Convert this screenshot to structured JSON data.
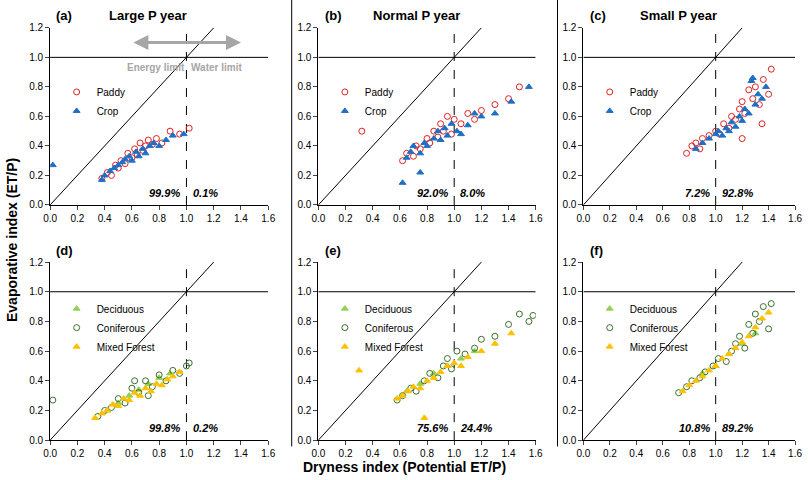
{
  "chart_data": {
    "type": "scatter",
    "xlabel": "Dryness index (Potential ET/P)",
    "ylabel": "Evaporative index (ET/P)",
    "xlim": [
      0,
      1.6
    ],
    "ylim": [
      0,
      1.2
    ],
    "xticks": [
      {
        "value": 0,
        "label": "0.0"
      },
      {
        "value": 0.2,
        "label": "0.2"
      },
      {
        "value": 0.4,
        "label": "0.4"
      },
      {
        "value": 0.6,
        "label": "0.6"
      },
      {
        "value": 0.8,
        "label": "0.8"
      },
      {
        "value": 1,
        "label": "1.0"
      },
      {
        "value": 1.2,
        "label": "1.2"
      },
      {
        "value": 1.4,
        "label": "1.4"
      },
      {
        "value": 1.6,
        "label": "1.6"
      }
    ],
    "yticks": [
      {
        "value": 0,
        "label": "0.0"
      },
      {
        "value": 0.2,
        "label": "0.2"
      },
      {
        "value": 0.4,
        "label": "0.4"
      },
      {
        "value": 0.6,
        "label": "0.6"
      },
      {
        "value": 0.8,
        "label": "0.8"
      },
      {
        "value": 1,
        "label": "1.0"
      },
      {
        "value": 1.2,
        "label": "1.2"
      }
    ],
    "grid": false,
    "legend": "upper left",
    "reference_lines": [
      {
        "x": [
          0,
          1.2
        ],
        "y": [
          0,
          1.2
        ],
        "line_style": "solid"
      },
      {
        "x": [
          0,
          1.6
        ],
        "y": [
          1,
          1
        ],
        "line_style": "solid"
      },
      {
        "x": [
          1,
          1
        ],
        "y": [
          0,
          1.2
        ],
        "line_style": "dashed"
      }
    ],
    "panels": [
      {
        "title": "(a)",
        "subtitle": "Large P year",
        "annotations": [
          {
            "text": "99.9%",
            "x": 0.97,
            "y": 0.08
          },
          {
            "text": "0.1%",
            "x": 1.03,
            "y": 0.08
          }
        ],
        "limit_arrow": {
          "x": [
            0.6,
            1.4
          ],
          "y": 1.1
        },
        "limit_labels": [
          {
            "text": "Energy limit",
            "x": 0.78,
            "y": 0.93
          },
          {
            "text": "Water limit",
            "x": 1.22,
            "y": 0.93
          }
        ],
        "series": [
          {
            "name": "Paddy",
            "color": "#e02020",
            "marker": "circle-open",
            "x": [
              0.38,
              0.42,
              0.45,
              0.48,
              0.5,
              0.52,
              0.55,
              0.57,
              0.6,
              0.62,
              0.64,
              0.66,
              0.68,
              0.7,
              0.72,
              0.75,
              0.78,
              0.82,
              0.88,
              0.95,
              1.02
            ],
            "y": [
              0.18,
              0.22,
              0.2,
              0.27,
              0.25,
              0.3,
              0.28,
              0.35,
              0.32,
              0.38,
              0.34,
              0.42,
              0.37,
              0.4,
              0.44,
              0.41,
              0.45,
              0.42,
              0.5,
              0.48,
              0.52
            ]
          },
          {
            "name": "Crop",
            "color": "#1f6fc5",
            "marker": "triangle-up",
            "x": [
              0.02,
              0.38,
              0.4,
              0.44,
              0.47,
              0.5,
              0.53,
              0.55,
              0.58,
              0.6,
              0.63,
              0.65,
              0.68,
              0.7,
              0.73,
              0.76,
              0.8,
              0.85,
              0.9,
              0.98
            ],
            "y": [
              0.27,
              0.17,
              0.2,
              0.23,
              0.25,
              0.27,
              0.29,
              0.31,
              0.33,
              0.3,
              0.36,
              0.33,
              0.38,
              0.35,
              0.4,
              0.42,
              0.4,
              0.44,
              0.47,
              0.48
            ]
          }
        ]
      },
      {
        "title": "(b)",
        "subtitle": "Normal P year",
        "annotations": [
          {
            "text": "92.0%",
            "x": 0.97,
            "y": 0.08
          },
          {
            "text": "8.0%",
            "x": 1.03,
            "y": 0.08
          }
        ],
        "series": [
          {
            "name": "Paddy",
            "color": "#e02020",
            "marker": "circle-open",
            "x": [
              0.32,
              0.62,
              0.65,
              0.7,
              0.72,
              0.75,
              0.8,
              0.82,
              0.85,
              0.88,
              0.9,
              0.92,
              0.95,
              0.98,
              1.0,
              1.05,
              1.1,
              1.15,
              1.2,
              1.3,
              1.4,
              1.48
            ],
            "y": [
              0.5,
              0.3,
              0.35,
              0.33,
              0.4,
              0.38,
              0.45,
              0.42,
              0.5,
              0.46,
              0.55,
              0.5,
              0.6,
              0.48,
              0.58,
              0.55,
              0.62,
              0.58,
              0.64,
              0.68,
              0.72,
              0.8
            ]
          },
          {
            "name": "Crop",
            "color": "#1f6fc5",
            "marker": "triangle-up",
            "x": [
              0.62,
              0.65,
              0.68,
              0.7,
              0.75,
              0.78,
              0.8,
              0.85,
              0.88,
              0.9,
              0.93,
              0.95,
              0.98,
              1.02,
              1.05,
              1.1,
              1.2,
              1.3,
              1.42,
              1.55,
              0.75,
              1.15
            ],
            "y": [
              0.15,
              0.32,
              0.36,
              0.4,
              0.35,
              0.42,
              0.4,
              0.45,
              0.5,
              0.44,
              0.52,
              0.47,
              0.55,
              0.5,
              0.48,
              0.54,
              0.6,
              0.62,
              0.7,
              0.8,
              0.22,
              0.62
            ]
          }
        ]
      },
      {
        "title": "(c)",
        "subtitle": "Small P year",
        "annotations": [
          {
            "text": "7.2%",
            "x": 0.97,
            "y": 0.08
          },
          {
            "text": "92.8%",
            "x": 1.03,
            "y": 0.08
          }
        ],
        "series": [
          {
            "name": "Paddy",
            "color": "#e02020",
            "marker": "circle-open",
            "x": [
              0.78,
              0.82,
              0.85,
              0.88,
              0.9,
              0.95,
              1.0,
              1.03,
              1.06,
              1.1,
              1.12,
              1.15,
              1.18,
              1.2,
              1.22,
              1.25,
              1.28,
              1.3,
              1.33,
              1.36,
              1.4,
              1.42,
              1.2,
              1.35
            ],
            "y": [
              0.35,
              0.4,
              0.42,
              0.38,
              0.45,
              0.47,
              0.5,
              0.48,
              0.55,
              0.52,
              0.6,
              0.58,
              0.65,
              0.7,
              0.62,
              0.78,
              0.72,
              0.8,
              0.68,
              0.85,
              0.75,
              0.92,
              0.45,
              0.55
            ]
          },
          {
            "name": "Crop",
            "color": "#1f6fc5",
            "marker": "triangle-up",
            "x": [
              0.85,
              0.9,
              0.95,
              1.0,
              1.02,
              1.05,
              1.08,
              1.1,
              1.12,
              1.15,
              1.18,
              1.2,
              1.22,
              1.25,
              1.27,
              1.3,
              1.32,
              1.35,
              1.38,
              1.28
            ],
            "y": [
              0.38,
              0.42,
              0.45,
              0.48,
              0.5,
              0.47,
              0.52,
              0.5,
              0.56,
              0.53,
              0.6,
              0.57,
              0.65,
              0.62,
              0.84,
              0.68,
              0.75,
              0.72,
              0.8,
              0.86
            ]
          }
        ]
      },
      {
        "title": "(d)",
        "annotations": [
          {
            "text": "99.8%",
            "x": 0.97,
            "y": 0.08
          },
          {
            "text": "0.2%",
            "x": 1.03,
            "y": 0.08
          }
        ],
        "series": [
          {
            "name": "Deciduous",
            "color": "#92d050",
            "marker": "triangle-up",
            "x": [
              0.42,
              0.5,
              0.58,
              0.65,
              0.72,
              0.8,
              0.88
            ],
            "y": [
              0.2,
              0.25,
              0.3,
              0.34,
              0.38,
              0.42,
              0.45
            ]
          },
          {
            "name": "Coniferous",
            "color": "#3a6e2e",
            "marker": "circle-open",
            "x": [
              0.02,
              0.35,
              0.4,
              0.45,
              0.5,
              0.55,
              0.6,
              0.65,
              0.7,
              0.75,
              0.8,
              0.85,
              0.9,
              0.95,
              1.0,
              1.02,
              0.62,
              0.72
            ],
            "y": [
              0.27,
              0.16,
              0.2,
              0.22,
              0.28,
              0.25,
              0.35,
              0.32,
              0.4,
              0.36,
              0.44,
              0.4,
              0.47,
              0.45,
              0.5,
              0.52,
              0.4,
              0.3
            ]
          },
          {
            "name": "Mixed Forest",
            "color": "#ffc000",
            "marker": "triangle-up",
            "x": [
              0.33,
              0.38,
              0.42,
              0.46,
              0.5,
              0.54,
              0.58,
              0.62,
              0.66,
              0.7,
              0.74,
              0.78,
              0.82,
              0.86,
              0.9,
              0.95
            ],
            "y": [
              0.15,
              0.18,
              0.2,
              0.24,
              0.23,
              0.28,
              0.27,
              0.32,
              0.3,
              0.35,
              0.33,
              0.38,
              0.37,
              0.41,
              0.43,
              0.46
            ]
          }
        ]
      },
      {
        "title": "(e)",
        "annotations": [
          {
            "text": "75.6%",
            "x": 0.97,
            "y": 0.08
          },
          {
            "text": "24.4%",
            "x": 1.03,
            "y": 0.08
          }
        ],
        "series": [
          {
            "name": "Deciduous",
            "color": "#92d050",
            "marker": "triangle-up",
            "x": [
              0.65,
              0.75,
              0.85,
              0.95,
              1.05,
              1.15
            ],
            "y": [
              0.33,
              0.38,
              0.45,
              0.5,
              0.55,
              0.6
            ]
          },
          {
            "name": "Coniferous",
            "color": "#3a6e2e",
            "marker": "circle-open",
            "x": [
              0.58,
              0.62,
              0.68,
              0.72,
              0.78,
              0.82,
              0.88,
              0.92,
              0.95,
              0.98,
              1.02,
              1.08,
              1.15,
              1.2,
              1.3,
              1.4,
              1.48,
              1.55,
              1.58
            ],
            "y": [
              0.27,
              0.3,
              0.35,
              0.33,
              0.4,
              0.45,
              0.42,
              0.5,
              0.55,
              0.48,
              0.6,
              0.58,
              0.62,
              0.68,
              0.7,
              0.78,
              0.85,
              0.8,
              0.84
            ]
          },
          {
            "name": "Mixed Forest",
            "color": "#ffc000",
            "marker": "triangle-up",
            "x": [
              0.3,
              0.58,
              0.62,
              0.66,
              0.7,
              0.75,
              0.8,
              0.85,
              0.9,
              0.95,
              1.0,
              1.05,
              1.1,
              1.2,
              1.3,
              1.42,
              0.78
            ],
            "y": [
              0.47,
              0.28,
              0.3,
              0.33,
              0.36,
              0.35,
              0.4,
              0.42,
              0.46,
              0.5,
              0.52,
              0.5,
              0.56,
              0.6,
              0.65,
              0.72,
              0.15
            ]
          }
        ]
      },
      {
        "title": "(f)",
        "annotations": [
          {
            "text": "10.8%",
            "x": 0.97,
            "y": 0.08
          },
          {
            "text": "89.2%",
            "x": 1.03,
            "y": 0.08
          }
        ],
        "series": [
          {
            "name": "Deciduous",
            "color": "#92d050",
            "marker": "triangle-up",
            "x": [
              0.9,
              1.0,
              1.1,
              1.2,
              1.3
            ],
            "y": [
              0.45,
              0.5,
              0.58,
              0.65,
              0.72
            ]
          },
          {
            "name": "Coniferous",
            "color": "#3a6e2e",
            "marker": "circle-open",
            "x": [
              0.72,
              0.78,
              0.82,
              0.88,
              0.92,
              0.98,
              1.02,
              1.08,
              1.12,
              1.15,
              1.18,
              1.22,
              1.25,
              1.28,
              1.3,
              1.33,
              1.36,
              1.4,
              1.42
            ],
            "y": [
              0.32,
              0.36,
              0.4,
              0.42,
              0.46,
              0.5,
              0.55,
              0.53,
              0.6,
              0.65,
              0.7,
              0.62,
              0.78,
              0.72,
              0.85,
              0.8,
              0.9,
              0.75,
              0.92
            ]
          },
          {
            "name": "Mixed Forest",
            "color": "#ffc000",
            "marker": "triangle-up",
            "x": [
              0.75,
              0.8,
              0.85,
              0.9,
              0.95,
              1.0,
              1.05,
              1.1,
              1.15,
              1.2,
              1.25,
              1.3,
              1.35,
              1.4
            ],
            "y": [
              0.33,
              0.37,
              0.4,
              0.43,
              0.47,
              0.5,
              0.55,
              0.58,
              0.62,
              0.66,
              0.7,
              0.76,
              0.82,
              0.86
            ]
          }
        ]
      }
    ]
  }
}
